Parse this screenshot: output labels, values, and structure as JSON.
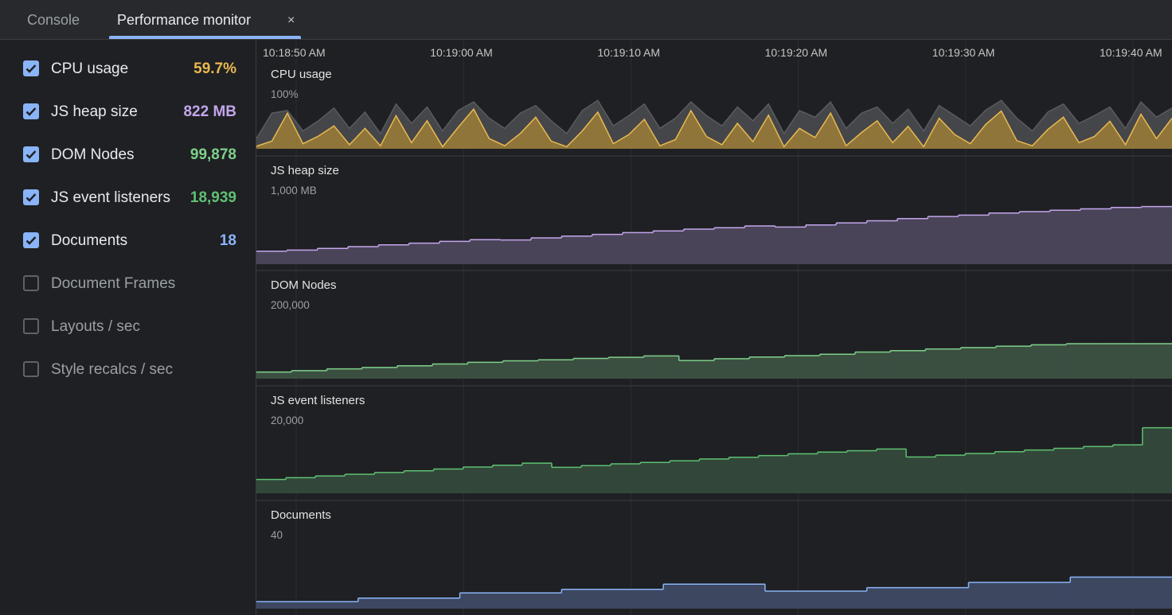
{
  "tabs": {
    "items": [
      "Console",
      "Performance monitor"
    ],
    "active": 1,
    "close": "×"
  },
  "metrics": [
    {
      "label": "CPU usage",
      "value": "59.7%",
      "checked": true,
      "color": "#e9b94f"
    },
    {
      "label": "JS heap size",
      "value": "822 MB",
      "checked": true,
      "color": "#c3a6ec"
    },
    {
      "label": "DOM Nodes",
      "value": "99,878",
      "checked": true,
      "color": "#7fd08b"
    },
    {
      "label": "JS event listeners",
      "value": "18,939",
      "checked": true,
      "color": "#5fc072"
    },
    {
      "label": "Documents",
      "value": "18",
      "checked": true,
      "color": "#8ab4f8"
    },
    {
      "label": "Document Frames",
      "checked": false
    },
    {
      "label": "Layouts / sec",
      "checked": false
    },
    {
      "label": "Style recalcs / sec",
      "checked": false
    }
  ],
  "timeline": [
    "10:18:50 AM",
    "10:19:00 AM",
    "10:19:10 AM",
    "10:19:20 AM",
    "10:19:30 AM",
    "10:19:40 AM"
  ],
  "charts": [
    {
      "type": "line",
      "title": "CPU usage",
      "max_label": "100%",
      "max": 100,
      "series": [
        {
          "color": "#5a5b5e",
          "fill": "#45464a",
          "values": [
            20,
            70,
            75,
            35,
            55,
            80,
            40,
            72,
            30,
            88,
            50,
            82,
            35,
            75,
            92,
            60,
            40,
            70,
            85,
            55,
            30,
            75,
            95,
            45,
            65,
            88,
            40,
            60,
            92,
            65,
            45,
            82,
            55,
            88,
            30,
            75,
            62,
            92,
            40,
            70,
            82,
            50,
            78,
            35,
            85,
            65,
            45,
            76,
            95,
            60,
            35,
            72,
            88,
            50,
            65,
            82,
            40,
            92,
            62,
            80
          ]
        },
        {
          "color": "#e9b94f",
          "fill": "#8f753a",
          "values": [
            5,
            15,
            70,
            10,
            25,
            45,
            8,
            40,
            6,
            65,
            12,
            55,
            4,
            42,
            78,
            20,
            6,
            30,
            62,
            15,
            4,
            35,
            72,
            10,
            28,
            58,
            6,
            18,
            75,
            24,
            8,
            50,
            14,
            66,
            4,
            40,
            22,
            70,
            6,
            32,
            55,
            12,
            44,
            4,
            60,
            28,
            10,
            48,
            74,
            16,
            6,
            38,
            62,
            12,
            24,
            54,
            8,
            68,
            20,
            60
          ]
        }
      ]
    },
    {
      "type": "step",
      "title": "JS heap size",
      "max_label": "1,000 MB",
      "max": 1000,
      "color": "#c3a6ec",
      "fill": "#4a4459",
      "values": [
        185,
        200,
        225,
        250,
        275,
        300,
        325,
        350,
        345,
        375,
        400,
        425,
        450,
        475,
        500,
        520,
        545,
        530,
        560,
        590,
        620,
        650,
        680,
        700,
        730,
        750,
        770,
        790,
        810,
        822
      ]
    },
    {
      "type": "step",
      "title": "DOM Nodes",
      "max_label": "200,000",
      "max": 200000,
      "color": "#7fd08b",
      "fill": "#3b4f41",
      "values": [
        19000,
        23000,
        28000,
        32000,
        37000,
        42000,
        47000,
        51000,
        54000,
        58000,
        61000,
        65000,
        52000,
        57000,
        62000,
        66000,
        70000,
        76000,
        80000,
        85000,
        89000,
        93000,
        97000,
        99878,
        99878,
        99878
      ]
    },
    {
      "type": "step",
      "title": "JS event listeners",
      "max_label": "20,000",
      "max": 20000,
      "color": "#5fc072",
      "fill": "#32473a",
      "values": [
        4000,
        4500,
        5000,
        5500,
        6000,
        6500,
        7000,
        7600,
        8100,
        8700,
        7500,
        8000,
        8500,
        8900,
        9400,
        9900,
        10400,
        10900,
        11400,
        11900,
        12300,
        12800,
        10500,
        11000,
        11500,
        12000,
        12500,
        13000,
        13500,
        14000,
        18939
      ]
    },
    {
      "type": "step",
      "title": "Documents",
      "max_label": "40",
      "max": 40,
      "color": "#8ab4f8",
      "fill": "#3d4760",
      "values": [
        4,
        6,
        9,
        11,
        14,
        10,
        12,
        15,
        18
      ]
    }
  ]
}
